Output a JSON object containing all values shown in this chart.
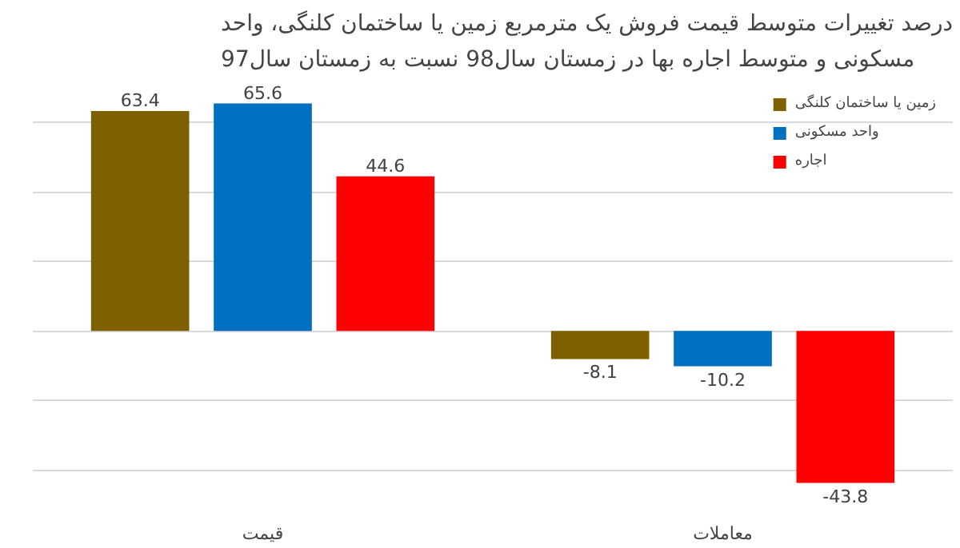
{
  "chart_data": {
    "type": "bar",
    "title": "درصد تغییرات متوسط قیمت فروش یک مترمربع زمین یا ساختمان کلنگی، واحد مسکونی و متوسط اجاره بها در زمستان سال98 نسبت به زمستان سال97",
    "categories": [
      "قیمت",
      "معاملات"
    ],
    "series": [
      {
        "name": "زمین یا ساختمان کلنگی",
        "color": "#7f6000",
        "values": [
          63.4,
          -8.1
        ]
      },
      {
        "name": "واحد مسکونی",
        "color": "#0070c0",
        "values": [
          65.6,
          -10.2
        ]
      },
      {
        "name": "اجاره",
        "color": "#ff0000",
        "values": [
          44.6,
          -43.8
        ]
      }
    ],
    "data_labels": true,
    "grid": "y",
    "legend": "right",
    "tick_labels": "x"
  }
}
